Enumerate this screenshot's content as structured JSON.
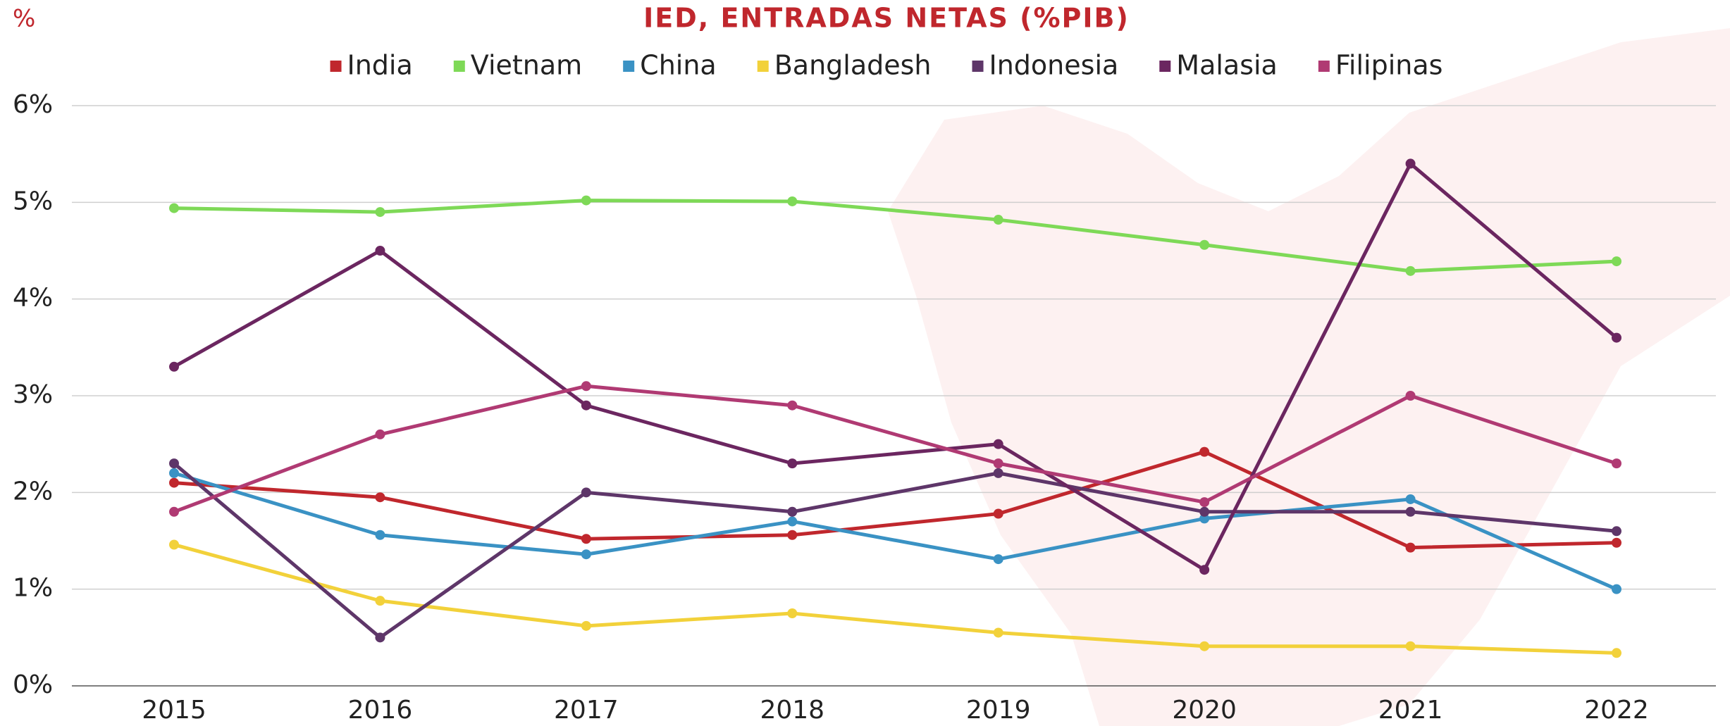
{
  "chart_data": {
    "type": "line",
    "title": "IED, ENTRADAS NETAS (%PIB)",
    "y_label": "%",
    "categories": [
      "2015",
      "2016",
      "2017",
      "2018",
      "2019",
      "2020",
      "2021",
      "2022"
    ],
    "series": [
      {
        "name": "India",
        "color": "#c0272d",
        "values": [
          2.1,
          1.95,
          1.52,
          1.56,
          1.78,
          2.42,
          1.43,
          1.48
        ]
      },
      {
        "name": "Vietnam",
        "color": "#7ed957",
        "values": [
          4.94,
          4.9,
          5.02,
          5.01,
          4.82,
          4.56,
          4.29,
          4.39
        ]
      },
      {
        "name": "China",
        "color": "#3a92c4",
        "values": [
          2.2,
          1.56,
          1.36,
          1.7,
          1.31,
          1.73,
          1.93,
          1.0
        ]
      },
      {
        "name": "Bangladesh",
        "color": "#f2d13a",
        "values": [
          1.46,
          0.88,
          0.62,
          0.75,
          0.55,
          0.41,
          0.41,
          0.34
        ]
      },
      {
        "name": "Indonesia",
        "color": "#5e3669",
        "values": [
          2.3,
          0.5,
          2.0,
          1.8,
          2.2,
          1.8,
          1.8,
          1.6
        ]
      },
      {
        "name": "Malasia",
        "color": "#6b2660",
        "values": [
          3.3,
          4.5,
          2.9,
          2.3,
          2.5,
          1.2,
          5.4,
          3.6
        ]
      },
      {
        "name": "Filipinas",
        "color": "#b03a73",
        "values": [
          1.8,
          2.6,
          3.1,
          2.9,
          2.3,
          1.9,
          3.0,
          2.3
        ]
      }
    ],
    "ylim": [
      0,
      6
    ],
    "yticks": [
      {
        "value": 0,
        "label": "0%"
      },
      {
        "value": 1,
        "label": "1%"
      },
      {
        "value": 2,
        "label": "2%"
      },
      {
        "value": 3,
        "label": "3%"
      },
      {
        "value": 4,
        "label": "4%"
      },
      {
        "value": 5,
        "label": "5%"
      },
      {
        "value": 6,
        "label": "6%"
      }
    ],
    "grid": true,
    "legend": "top"
  }
}
